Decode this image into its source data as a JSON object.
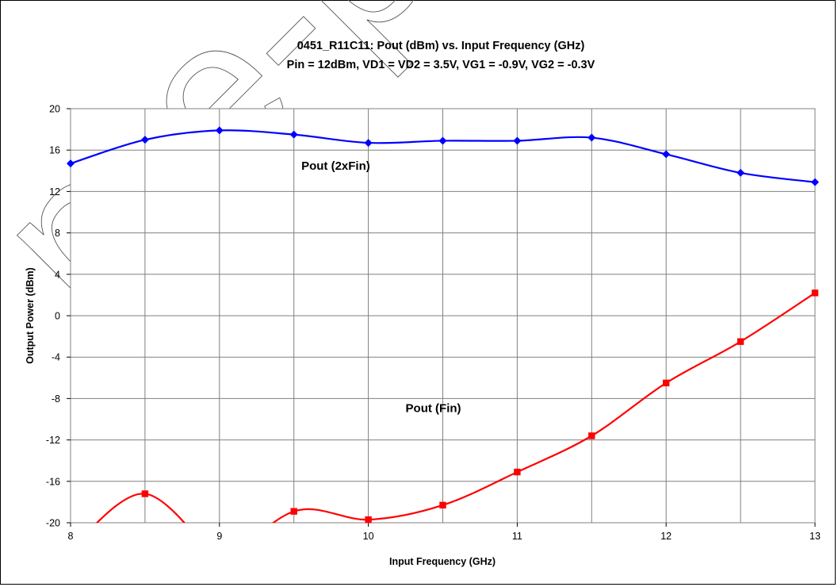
{
  "chart_data": {
    "type": "line",
    "title": "0451_R11C11: Pout (dBm) vs. Input Frequency (GHz)",
    "subtitle": "Pin = 12dBm, VD1 = VD2 = 3.5V, VG1 = -0.9V, VG2 = -0.3V",
    "xlabel": "Input Frequency (GHz)",
    "ylabel": "Output Power (dBm)",
    "xlim": [
      8,
      13
    ],
    "ylim": [
      -20,
      20
    ],
    "x_ticks": [
      "8",
      "9",
      "10",
      "11",
      "12",
      "13"
    ],
    "y_ticks": [
      "20",
      "16",
      "12",
      "8",
      "4",
      "0",
      "-4",
      "-8",
      "-12",
      "-16",
      "-20"
    ],
    "x_minor_gridlines": [
      8.5,
      9.5,
      10.5,
      11.5,
      12.5
    ],
    "grid": true,
    "series": [
      {
        "color": "#0000ff",
        "marker": "diamond",
        "points": [
          [
            8.0,
            14.7
          ],
          [
            8.5,
            17.0
          ],
          [
            9.0,
            17.9
          ],
          [
            9.5,
            17.5
          ],
          [
            10.0,
            16.7
          ],
          [
            10.5,
            16.9
          ],
          [
            11.0,
            16.9
          ],
          [
            11.5,
            17.2
          ],
          [
            12.0,
            15.6
          ],
          [
            12.5,
            13.8
          ],
          [
            13.0,
            12.9
          ]
        ]
      },
      {
        "color": "#ff0000",
        "marker": "square",
        "segments": [
          [
            [
              8.0,
              -22.5
            ],
            [
              8.5,
              -17.2
            ],
            [
              9.0,
              -24.0
            ]
          ],
          [
            [
              9.0,
              -24.5
            ],
            [
              9.5,
              -18.9
            ],
            [
              10.0,
              -19.7
            ],
            [
              10.5,
              -18.3
            ],
            [
              11.0,
              -15.1
            ],
            [
              11.5,
              -11.6
            ],
            [
              12.0,
              -6.5
            ],
            [
              12.5,
              -2.5
            ],
            [
              13.0,
              2.2
            ]
          ]
        ]
      }
    ],
    "annotations": [
      {
        "text": "Pout (2xFin)",
        "x": 9.55,
        "y": 14.1
      },
      {
        "text": "Pout (Fin)",
        "x": 10.25,
        "y": -9.3
      }
    ]
  },
  "watermark": {
    "text": "pre-production"
  }
}
